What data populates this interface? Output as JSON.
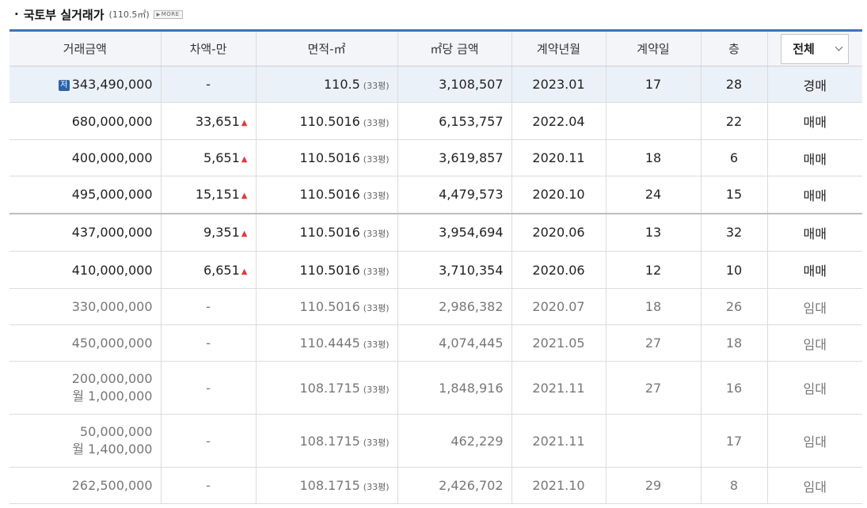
{
  "header": {
    "bullet": "·",
    "title": "국토부 실거래가",
    "area": "(110.5㎡)",
    "more_label": "MORE"
  },
  "columns": [
    "거래금액",
    "차액-만",
    "면적-㎡",
    "㎡당 금액",
    "계약년월",
    "계약일",
    "층"
  ],
  "filter": {
    "selected": "전체"
  },
  "rows": [
    {
      "badge": "저",
      "price": "343,490,000",
      "price2": "",
      "diff": "-",
      "diff_up": false,
      "area": "110.5",
      "pyeong": "(33평)",
      "per_m2": "3,108,507",
      "ym": "2023.01",
      "day": "17",
      "floor": "28",
      "type": "경매"
    },
    {
      "badge": "",
      "price": "680,000,000",
      "price2": "",
      "diff": "33,651",
      "diff_up": true,
      "area": "110.5016",
      "pyeong": "(33평)",
      "per_m2": "6,153,757",
      "ym": "2022.04",
      "day": "",
      "floor": "22",
      "type": "매매"
    },
    {
      "badge": "",
      "price": "400,000,000",
      "price2": "",
      "diff": "5,651",
      "diff_up": true,
      "area": "110.5016",
      "pyeong": "(33평)",
      "per_m2": "3,619,857",
      "ym": "2020.11",
      "day": "18",
      "floor": "6",
      "type": "매매"
    },
    {
      "badge": "",
      "price": "495,000,000",
      "price2": "",
      "diff": "15,151",
      "diff_up": true,
      "area": "110.5016",
      "pyeong": "(33평)",
      "per_m2": "4,479,573",
      "ym": "2020.10",
      "day": "24",
      "floor": "15",
      "type": "매매"
    },
    {
      "badge": "",
      "price": "437,000,000",
      "price2": "",
      "diff": "9,351",
      "diff_up": true,
      "area": "110.5016",
      "pyeong": "(33평)",
      "per_m2": "3,954,694",
      "ym": "2020.06",
      "day": "13",
      "floor": "32",
      "type": "매매"
    },
    {
      "badge": "",
      "price": "410,000,000",
      "price2": "",
      "diff": "6,651",
      "diff_up": true,
      "area": "110.5016",
      "pyeong": "(33평)",
      "per_m2": "3,710,354",
      "ym": "2020.06",
      "day": "12",
      "floor": "10",
      "type": "매매"
    },
    {
      "badge": "",
      "price": "330,000,000",
      "price2": "",
      "diff": "-",
      "diff_up": false,
      "area": "110.5016",
      "pyeong": "(33평)",
      "per_m2": "2,986,382",
      "ym": "2020.07",
      "day": "18",
      "floor": "26",
      "type": "임대"
    },
    {
      "badge": "",
      "price": "450,000,000",
      "price2": "",
      "diff": "-",
      "diff_up": false,
      "area": "110.4445",
      "pyeong": "(33평)",
      "per_m2": "4,074,445",
      "ym": "2021.05",
      "day": "27",
      "floor": "18",
      "type": "임대"
    },
    {
      "badge": "",
      "price": "200,000,000",
      "price2": "월 1,000,000",
      "diff": "-",
      "diff_up": false,
      "area": "108.1715",
      "pyeong": "(33평)",
      "per_m2": "1,848,916",
      "ym": "2021.11",
      "day": "27",
      "floor": "16",
      "type": "임대"
    },
    {
      "badge": "",
      "price": "50,000,000",
      "price2": "월 1,400,000",
      "diff": "-",
      "diff_up": false,
      "area": "108.1715",
      "pyeong": "(33평)",
      "per_m2": "462,229",
      "ym": "2021.11",
      "day": "",
      "floor": "17",
      "type": "임대"
    },
    {
      "badge": "",
      "price": "262,500,000",
      "price2": "",
      "diff": "-",
      "diff_up": false,
      "area": "108.1715",
      "pyeong": "(33평)",
      "per_m2": "2,426,702",
      "ym": "2021.10",
      "day": "29",
      "floor": "8",
      "type": "임대"
    }
  ],
  "colors": {
    "accent": "#3f74b7",
    "highlight_row": "#eaf1f8",
    "up_arrow": "#e03c3c",
    "badge": "#2c63a8"
  },
  "icons": {
    "up": "up-triangle-icon",
    "dropdown": "chevron-down-icon",
    "more": "more-button-icon"
  }
}
